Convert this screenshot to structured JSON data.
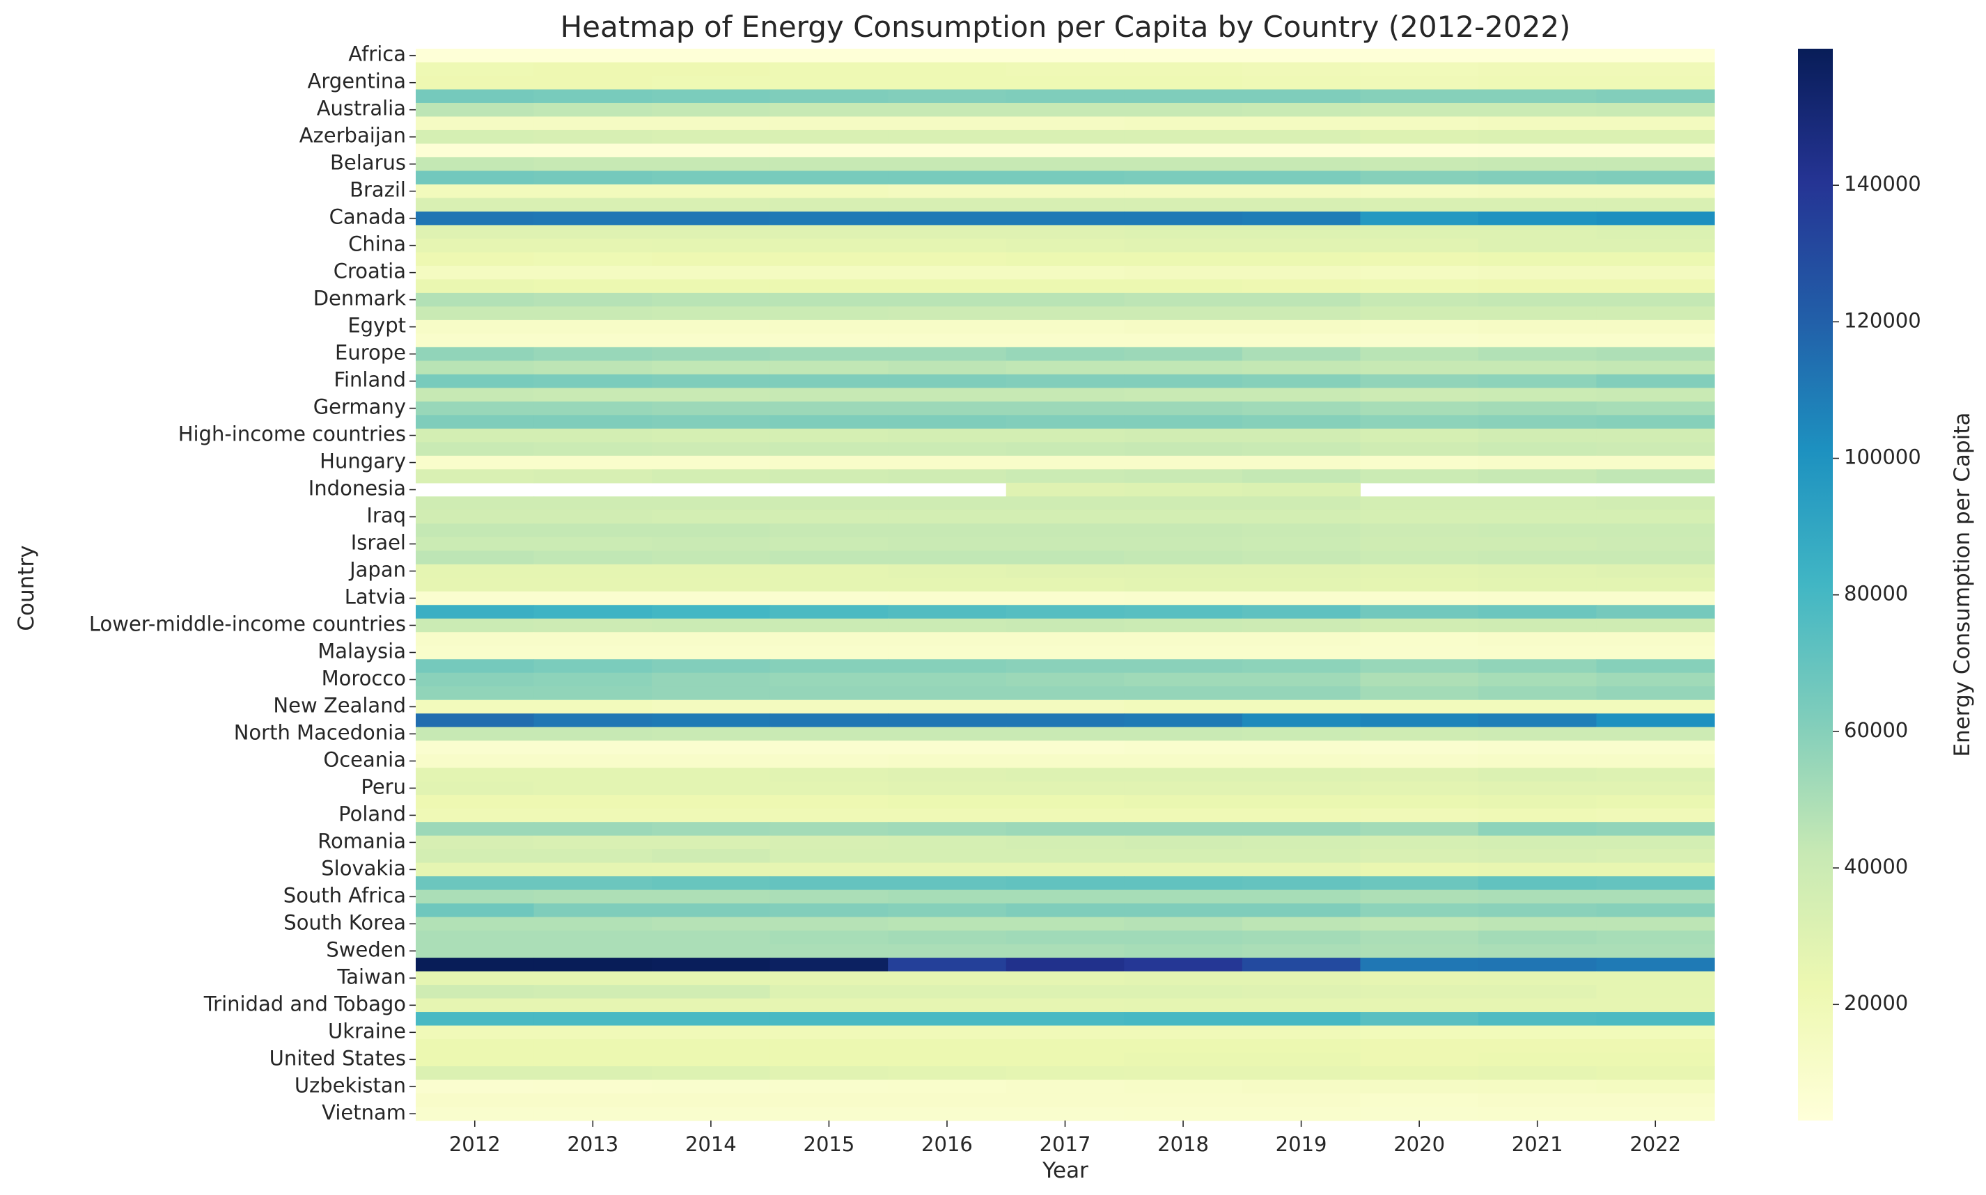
{
  "chart_data": {
    "type": "heatmap",
    "title": "Heatmap of Energy Consumption per Capita by Country (2012-2022)",
    "xlabel": "Year",
    "ylabel": "Country",
    "colorbar_label": "Energy Consumption per Capita",
    "colormap": "YlGnBu",
    "color_range": [
      3000,
      160000
    ],
    "colorbar_ticks": [
      20000,
      40000,
      60000,
      80000,
      100000,
      120000,
      140000
    ],
    "colorbar_tick_labels": [
      "20000",
      "40000",
      "60000",
      "80000",
      "100000",
      "120000",
      "140000"
    ],
    "x": [
      "2012",
      "2013",
      "2014",
      "2015",
      "2016",
      "2017",
      "2018",
      "2019",
      "2020",
      "2021",
      "2022"
    ],
    "y_labeled": [
      "Africa",
      "Argentina",
      "Australia",
      "Azerbaijan",
      "Belarus",
      "Brazil",
      "Canada",
      "China",
      "Croatia",
      "Denmark",
      "Egypt",
      "Europe",
      "Finland",
      "Germany",
      "High-income countries",
      "Hungary",
      "Indonesia",
      "Iraq",
      "Israel",
      "Japan",
      "Latvia",
      "Lower-middle-income countries",
      "Malaysia",
      "Morocco",
      "New Zealand",
      "North Macedonia",
      "Oceania",
      "Peru",
      "Poland",
      "Romania",
      "Slovakia",
      "South Africa",
      "South Korea",
      "Sweden",
      "Taiwan",
      "Trinidad and Tobago",
      "Ukraine",
      "United States",
      "Uzbekistan",
      "Vietnam"
    ],
    "row_count": 79,
    "values": [
      [
        4000,
        4100,
        4200,
        4100,
        4100,
        4100,
        4100,
        4100,
        4000,
        4100,
        4100
      ],
      [
        21000,
        22000,
        22000,
        21000,
        21000,
        20000,
        20000,
        19000,
        18000,
        19000,
        19000
      ],
      [
        22000,
        22000,
        21000,
        21000,
        21000,
        21000,
        21000,
        20000,
        19000,
        20000,
        20000
      ],
      [
        65000,
        64000,
        63000,
        62000,
        61000,
        62000,
        62000,
        62000,
        60000,
        60000,
        61000
      ],
      [
        45000,
        44000,
        43000,
        42000,
        42000,
        42000,
        42000,
        41000,
        40000,
        40000,
        41000
      ],
      [
        14000,
        14000,
        14000,
        14000,
        14000,
        14000,
        15000,
        15000,
        15000,
        16000,
        16000
      ],
      [
        35000,
        34000,
        33000,
        33000,
        33000,
        33000,
        33000,
        33000,
        31000,
        32000,
        32000
      ],
      [
        5000,
        5000,
        5000,
        5000,
        5000,
        5000,
        5000,
        5000,
        4500,
        5000,
        5000
      ],
      [
        43000,
        42000,
        42000,
        42000,
        42000,
        42000,
        42000,
        42000,
        41000,
        42000,
        42000
      ],
      [
        66000,
        65000,
        64000,
        64000,
        64000,
        64000,
        63000,
        63000,
        60000,
        61000,
        62000
      ],
      [
        17000,
        17000,
        17000,
        17000,
        16000,
        16000,
        16000,
        16000,
        15000,
        16000,
        16000
      ],
      [
        33000,
        33000,
        33000,
        34000,
        34000,
        34000,
        34000,
        34000,
        33000,
        33000,
        33000
      ],
      [
        112000,
        111000,
        111000,
        110000,
        110000,
        110000,
        110000,
        109000,
        97000,
        100000,
        102000
      ],
      [
        30000,
        30000,
        30000,
        30000,
        30000,
        30000,
        31000,
        31000,
        31000,
        31000,
        32000
      ],
      [
        26000,
        26000,
        27000,
        27000,
        27000,
        28000,
        29000,
        29000,
        29000,
        31000,
        31000
      ],
      [
        22000,
        21000,
        22000,
        22000,
        22000,
        23000,
        23000,
        23000,
        22000,
        23000,
        23000
      ],
      [
        15000,
        15000,
        15000,
        15000,
        15000,
        15000,
        16000,
        16000,
        15000,
        16000,
        16000
      ],
      [
        24000,
        23000,
        23000,
        23000,
        23000,
        23000,
        23000,
        22000,
        21000,
        22000,
        22000
      ],
      [
        48000,
        47000,
        46000,
        46000,
        46000,
        46000,
        45000,
        45000,
        42000,
        43000,
        43000
      ],
      [
        41000,
        41000,
        40000,
        40000,
        39000,
        39000,
        39000,
        39000,
        37000,
        37000,
        37000
      ],
      [
        12000,
        12000,
        12000,
        12000,
        12000,
        12000,
        13000,
        13000,
        12000,
        13000,
        13000
      ],
      [
        10000,
        10000,
        10000,
        10000,
        10000,
        10000,
        10000,
        10000,
        9000,
        10000,
        10000
      ],
      [
        57000,
        55000,
        54000,
        53000,
        53000,
        55000,
        54000,
        50000,
        46000,
        48000,
        49000
      ],
      [
        46000,
        45000,
        44000,
        44000,
        45000,
        44000,
        44000,
        43000,
        42000,
        42000,
        43000
      ],
      [
        64000,
        63000,
        62000,
        62000,
        62000,
        61000,
        61000,
        60000,
        57000,
        58000,
        61000
      ],
      [
        42000,
        41000,
        41000,
        42000,
        42000,
        42000,
        41000,
        41000,
        39000,
        40000,
        41000
      ],
      [
        55000,
        55000,
        54000,
        54000,
        54000,
        54000,
        54000,
        53000,
        51000,
        52000,
        51000
      ],
      [
        62000,
        62000,
        61000,
        62000,
        62000,
        61000,
        61000,
        60000,
        58000,
        59000,
        60000
      ],
      [
        36000,
        36000,
        35000,
        35000,
        36000,
        36000,
        37000,
        37000,
        35000,
        37000,
        37000
      ],
      [
        41000,
        40000,
        39000,
        40000,
        40000,
        41000,
        42000,
        41000,
        38000,
        40000,
        39000
      ],
      [
        10000,
        10000,
        10000,
        11000,
        11000,
        11000,
        11000,
        11000,
        10000,
        11000,
        11000
      ],
      [
        33000,
        34000,
        36000,
        37000,
        38000,
        40000,
        41000,
        43000,
        40000,
        42000,
        44000
      ],
      [
        2500,
        2600,
        2700,
        2700,
        2700,
        30000,
        31000,
        32000,
        2500,
        2500,
        2500
      ],
      [
        38000,
        38000,
        38000,
        38000,
        38000,
        38000,
        38000,
        38000,
        36000,
        36000,
        37000
      ],
      [
        37000,
        37000,
        36000,
        36000,
        36000,
        36000,
        36000,
        36000,
        35000,
        35000,
        35000
      ],
      [
        43000,
        43000,
        43000,
        42000,
        42000,
        42000,
        42000,
        41000,
        39000,
        40000,
        40000
      ],
      [
        40000,
        40000,
        41000,
        40000,
        41000,
        41000,
        41000,
        40000,
        38000,
        38000,
        39000
      ],
      [
        45000,
        44000,
        43000,
        44000,
        44000,
        44000,
        43000,
        42000,
        40000,
        41000,
        41000
      ],
      [
        27000,
        27000,
        27000,
        27000,
        28000,
        29000,
        29000,
        29000,
        28000,
        29000,
        30000
      ],
      [
        26000,
        26000,
        26000,
        27000,
        27000,
        27000,
        28000,
        28000,
        27000,
        28000,
        28000
      ],
      [
        8000,
        8000,
        8000,
        8000,
        8500,
        8500,
        9000,
        9000,
        8500,
        9000,
        9000
      ],
      [
        85000,
        83000,
        81000,
        78000,
        76000,
        75000,
        74000,
        72000,
        66000,
        68000,
        65000
      ],
      [
        40000,
        39000,
        40000,
        40000,
        40000,
        41000,
        40000,
        39000,
        37000,
        38000,
        38000
      ],
      [
        11000,
        11000,
        11000,
        11000,
        11000,
        11000,
        11000,
        11000,
        10000,
        11000,
        11000
      ],
      [
        10000,
        10000,
        10000,
        10000,
        10000,
        10000,
        10000,
        10000,
        9500,
        10000,
        10000
      ],
      [
        65000,
        63000,
        61000,
        60000,
        60000,
        59000,
        59000,
        58000,
        55000,
        57000,
        60000
      ],
      [
        59000,
        58000,
        56000,
        55000,
        55000,
        54000,
        53000,
        53000,
        49000,
        51000,
        53000
      ],
      [
        57000,
        57000,
        56000,
        56000,
        56000,
        56000,
        56000,
        56000,
        52000,
        54000,
        56000
      ],
      [
        17000,
        17000,
        16000,
        16000,
        16000,
        16000,
        17000,
        17000,
        17000,
        17000,
        17000
      ],
      [
        115000,
        111000,
        110000,
        111000,
        111000,
        111000,
        110000,
        104000,
        106000,
        108000,
        101000
      ],
      [
        42000,
        42000,
        41000,
        41000,
        41000,
        41000,
        41000,
        40000,
        38000,
        39000,
        39000
      ],
      [
        8000,
        8000,
        8000,
        8000,
        8000,
        8000,
        9000,
        9000,
        8000,
        9000,
        9000
      ],
      [
        11000,
        11000,
        11000,
        11000,
        12000,
        12000,
        12000,
        12000,
        11000,
        12000,
        12000
      ],
      [
        28000,
        28000,
        28000,
        29000,
        30000,
        31000,
        31000,
        31000,
        30000,
        32000,
        31000
      ],
      [
        29000,
        28000,
        28000,
        28000,
        29000,
        29000,
        29000,
        29000,
        28000,
        29000,
        29000
      ],
      [
        22000,
        22000,
        22000,
        22000,
        23000,
        23000,
        24000,
        24000,
        24000,
        25000,
        24000
      ],
      [
        20000,
        20000,
        20000,
        20000,
        20000,
        20000,
        20000,
        20000,
        19000,
        20000,
        19000
      ],
      [
        54000,
        54000,
        53000,
        52000,
        53000,
        54000,
        54000,
        54000,
        52000,
        58000,
        57000
      ],
      [
        34000,
        33000,
        33000,
        34000,
        35000,
        36000,
        37000,
        36000,
        35000,
        36000,
        36000
      ],
      [
        36000,
        36000,
        38000,
        35000,
        35000,
        35000,
        35000,
        35000,
        33000,
        34000,
        33000
      ],
      [
        27000,
        27000,
        26000,
        26000,
        26000,
        26000,
        26000,
        26000,
        24000,
        25000,
        25000
      ],
      [
        68000,
        68000,
        69000,
        70000,
        70000,
        71000,
        71000,
        70000,
        68000,
        71000,
        70000
      ],
      [
        50000,
        49000,
        49000,
        50000,
        51000,
        51000,
        51000,
        51000,
        49000,
        50000,
        50000
      ],
      [
        67000,
        62000,
        62000,
        61000,
        60000,
        62000,
        62000,
        62000,
        58000,
        59000,
        60000
      ],
      [
        48000,
        48000,
        47000,
        47000,
        46000,
        46000,
        47000,
        45000,
        44000,
        45000,
        45000
      ],
      [
        50000,
        50000,
        50000,
        51000,
        52000,
        53000,
        53000,
        52000,
        50000,
        52000,
        51000
      ],
      [
        50000,
        50000,
        50000,
        50000,
        50000,
        50000,
        51000,
        50000,
        49000,
        50000,
        50000
      ],
      [
        160000,
        160000,
        159000,
        157000,
        135000,
        143000,
        139000,
        130000,
        111000,
        112000,
        110000
      ],
      [
        27000,
        27000,
        27000,
        27000,
        27000,
        27000,
        28000,
        28000,
        26000,
        27000,
        27000
      ],
      [
        38000,
        37000,
        37000,
        31000,
        31000,
        31000,
        31000,
        30000,
        29000,
        29000,
        27000
      ],
      [
        26000,
        26000,
        26000,
        26000,
        26000,
        26000,
        27000,
        27000,
        26000,
        26000,
        26000
      ],
      [
        79000,
        79000,
        79000,
        79000,
        79000,
        79000,
        80000,
        80000,
        74000,
        77000,
        78000
      ],
      [
        19000,
        19000,
        19000,
        19000,
        19000,
        19000,
        19000,
        19000,
        18000,
        18000,
        18000
      ],
      [
        23000,
        23000,
        23000,
        23000,
        23000,
        23000,
        23000,
        23000,
        22000,
        22000,
        22000
      ],
      [
        23000,
        23000,
        23000,
        23000,
        23000,
        23000,
        24000,
        24000,
        22000,
        23000,
        23000
      ],
      [
        32000,
        32000,
        31000,
        29000,
        28000,
        27000,
        26000,
        26000,
        25000,
        26000,
        25000
      ],
      [
        8000,
        8500,
        9000,
        9500,
        10000,
        11000,
        12000,
        13000,
        13500,
        14000,
        15000
      ],
      [
        11000,
        11000,
        11000,
        11000,
        11000,
        11000,
        11000,
        11000,
        10000,
        11000,
        11000
      ],
      [
        9000,
        9000,
        9000,
        9000,
        9000,
        9000,
        9500,
        9500,
        9000,
        9500,
        9500
      ]
    ]
  }
}
